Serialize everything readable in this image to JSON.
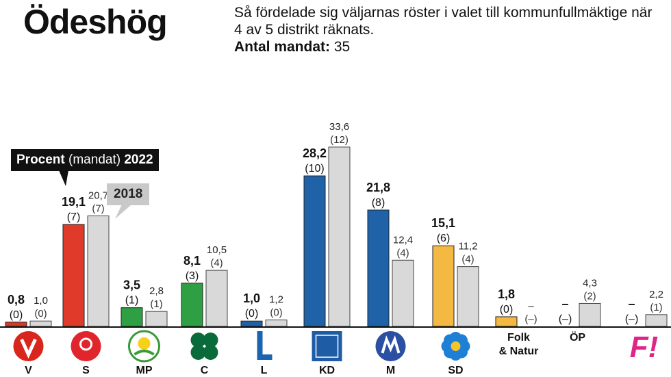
{
  "header": {
    "title": "Ödeshög",
    "subtitle": "Så fördelade sig väljarnas röster i valet till kommunfullmäktige när 4 av 5 distrikt räknats.",
    "seats_label": "Antal mandat:",
    "seats_value": "35"
  },
  "callouts": {
    "current_prefix": "Procent",
    "current_middle": " (mandat) ",
    "current_year": "2022",
    "previous_year": "2018"
  },
  "colors": {
    "previous": "#d9d9d9",
    "axis": "#111111"
  },
  "chart_data": {
    "type": "bar",
    "ylim": [
      0,
      34
    ],
    "grid": false,
    "categories": [
      "V",
      "S",
      "MP",
      "C",
      "L",
      "KD",
      "M",
      "SD",
      "Folk & Natur",
      "ÖP",
      "F!"
    ],
    "series": [
      {
        "name": "2022",
        "values": [
          0.8,
          19.1,
          3.5,
          8.1,
          1.0,
          28.2,
          21.8,
          15.1,
          1.8,
          null,
          null
        ],
        "value_labels": [
          "0,8",
          "19,1",
          "3,5",
          "8,1",
          "1,0",
          "28,2",
          "21,8",
          "15,1",
          "1,8",
          "–",
          "–"
        ],
        "seat_labels": [
          "(0)",
          "(7)",
          "(1)",
          "(3)",
          "(0)",
          "(10)",
          "(8)",
          "(6)",
          "(0)",
          "(–)",
          "(–)"
        ],
        "colors": [
          "#d23a2a",
          "#e03b2a",
          "#2ea043",
          "#2ea043",
          "#1f62a8",
          "#1f62a8",
          "#1f62a8",
          "#f4b942",
          "#f4b942",
          "#cccccc",
          "#cccccc"
        ]
      },
      {
        "name": "2018",
        "values": [
          1.0,
          20.7,
          2.8,
          10.5,
          1.2,
          33.6,
          12.4,
          11.2,
          null,
          4.3,
          2.2
        ],
        "value_labels": [
          "1,0",
          "20,7",
          "2,8",
          "10,5",
          "1,2",
          "33,6",
          "12,4",
          "11,2",
          "–",
          "4,3",
          "2,2"
        ],
        "seat_labels": [
          "(0)",
          "(7)",
          "(1)",
          "(4)",
          "(0)",
          "(12)",
          "(4)",
          "(4)",
          "(–)",
          "(2)",
          "(1)"
        ]
      }
    ],
    "logos": [
      {
        "name": "v-logo-icon",
        "color": "#d9261c"
      },
      {
        "name": "s-rose-logo-icon",
        "color": "#e0262c"
      },
      {
        "name": "mp-dandelion-logo-icon",
        "color": "#3a9a3a"
      },
      {
        "name": "c-clover-logo-icon",
        "color": "#0a6b3a"
      },
      {
        "name": "l-logo-icon",
        "color": "#1b65b0"
      },
      {
        "name": "kd-logo-icon",
        "color": "#1f5ca6"
      },
      {
        "name": "m-logo-icon",
        "color": "#2b4fa2"
      },
      {
        "name": "sd-flower-logo-icon",
        "color": "#1e7fd6"
      },
      {
        "name": "folk-natur-text",
        "color": "#111111"
      },
      {
        "name": "op-text",
        "color": "#111111"
      },
      {
        "name": "f-logo-icon",
        "color": "#e0258a"
      }
    ]
  }
}
